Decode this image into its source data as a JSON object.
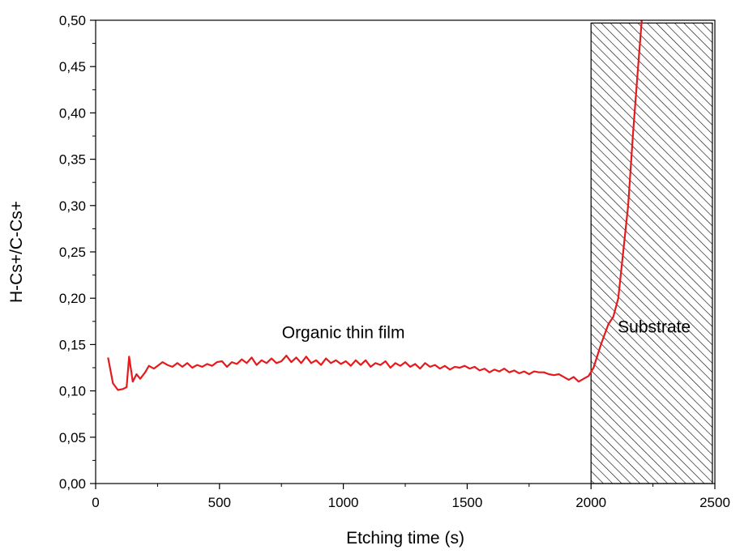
{
  "chart_data": {
    "type": "line",
    "title": "",
    "xlabel": "Etching time (s)",
    "ylabel": "H-Cs+/C-Cs+",
    "xlim": [
      0,
      2500
    ],
    "ylim": [
      0,
      0.5
    ],
    "grid": false,
    "x_ticks": [
      {
        "value": 0,
        "label": "0"
      },
      {
        "value": 500,
        "label": "500"
      },
      {
        "value": 1000,
        "label": "1000"
      },
      {
        "value": 1500,
        "label": "1500"
      },
      {
        "value": 2000,
        "label": "2000"
      },
      {
        "value": 2500,
        "label": "2500"
      }
    ],
    "y_ticks": [
      {
        "value": 0.0,
        "label": "0,00"
      },
      {
        "value": 0.05,
        "label": "0,05"
      },
      {
        "value": 0.1,
        "label": "0,10"
      },
      {
        "value": 0.15,
        "label": "0,15"
      },
      {
        "value": 0.2,
        "label": "0,20"
      },
      {
        "value": 0.25,
        "label": "0,25"
      },
      {
        "value": 0.3,
        "label": "0,30"
      },
      {
        "value": 0.35,
        "label": "0,35"
      },
      {
        "value": 0.4,
        "label": "0,40"
      },
      {
        "value": 0.45,
        "label": "0,45"
      },
      {
        "value": 0.5,
        "label": "0,50"
      }
    ],
    "series": [
      {
        "color": "#e41a1c",
        "x": [
          50,
          70,
          90,
          110,
          125,
          135,
          150,
          165,
          180,
          200,
          215,
          235,
          250,
          270,
          290,
          310,
          330,
          350,
          370,
          390,
          410,
          430,
          450,
          470,
          490,
          510,
          530,
          550,
          570,
          590,
          610,
          630,
          650,
          670,
          690,
          710,
          730,
          750,
          770,
          790,
          810,
          830,
          850,
          870,
          890,
          910,
          930,
          950,
          970,
          990,
          1010,
          1030,
          1050,
          1070,
          1090,
          1110,
          1130,
          1150,
          1170,
          1190,
          1210,
          1230,
          1250,
          1270,
          1290,
          1310,
          1330,
          1350,
          1370,
          1390,
          1410,
          1430,
          1450,
          1470,
          1490,
          1510,
          1530,
          1550,
          1570,
          1590,
          1610,
          1630,
          1650,
          1670,
          1690,
          1710,
          1730,
          1750,
          1770,
          1790,
          1810,
          1830,
          1850,
          1870,
          1890,
          1910,
          1930,
          1950,
          1970,
          1990,
          2010,
          2040,
          2070,
          2090,
          2110,
          2130,
          2150,
          2170,
          2190,
          2205
        ],
        "y": [
          0.136,
          0.108,
          0.101,
          0.102,
          0.104,
          0.137,
          0.11,
          0.118,
          0.113,
          0.12,
          0.127,
          0.124,
          0.127,
          0.131,
          0.128,
          0.126,
          0.13,
          0.126,
          0.13,
          0.125,
          0.128,
          0.126,
          0.129,
          0.127,
          0.131,
          0.132,
          0.126,
          0.131,
          0.129,
          0.134,
          0.13,
          0.136,
          0.128,
          0.133,
          0.13,
          0.135,
          0.13,
          0.132,
          0.138,
          0.131,
          0.136,
          0.13,
          0.137,
          0.13,
          0.133,
          0.128,
          0.135,
          0.13,
          0.133,
          0.129,
          0.132,
          0.127,
          0.133,
          0.128,
          0.133,
          0.126,
          0.13,
          0.128,
          0.132,
          0.125,
          0.13,
          0.127,
          0.131,
          0.126,
          0.129,
          0.124,
          0.13,
          0.126,
          0.128,
          0.124,
          0.127,
          0.123,
          0.126,
          0.125,
          0.127,
          0.124,
          0.126,
          0.122,
          0.124,
          0.12,
          0.123,
          0.121,
          0.124,
          0.12,
          0.122,
          0.119,
          0.121,
          0.118,
          0.121,
          0.12,
          0.12,
          0.118,
          0.117,
          0.118,
          0.115,
          0.112,
          0.115,
          0.11,
          0.113,
          0.116,
          0.125,
          0.15,
          0.172,
          0.18,
          0.2,
          0.25,
          0.3,
          0.38,
          0.45,
          0.5
        ]
      }
    ],
    "annotations": [
      {
        "text": "Organic thin film",
        "x": 1000,
        "y": 0.157
      },
      {
        "text": "Substrate",
        "x": 2255,
        "y": 0.163
      }
    ],
    "shaded_region": {
      "x_start": 2000,
      "x_end": 2490,
      "y_start": 0,
      "y_end": 0.497,
      "pattern": "hatched"
    }
  }
}
